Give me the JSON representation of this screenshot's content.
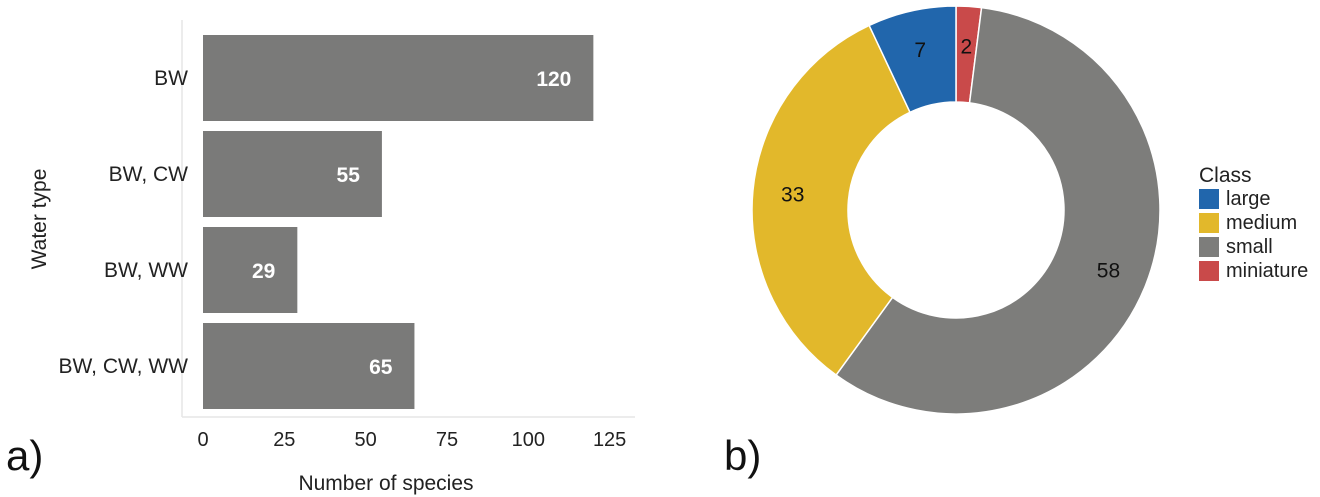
{
  "panel_labels": {
    "a": "a)",
    "b": "b)"
  },
  "chart_data": [
    {
      "type": "bar",
      "orientation": "horizontal",
      "categories": [
        "BW",
        "BW, CW",
        "BW, WW",
        "BW, CW, WW"
      ],
      "values": [
        120,
        55,
        29,
        65
      ],
      "data_labels": [
        "120",
        "55",
        "29",
        "65"
      ],
      "xlabel": "Number of species",
      "ylabel": "Water type",
      "xlim": [
        0,
        125
      ],
      "xticks": [
        0,
        25,
        50,
        75,
        100,
        125
      ],
      "xtick_labels": [
        "0",
        "25",
        "50",
        "75",
        "100",
        "125"
      ],
      "bar_color": "#7a7a79",
      "grid": false
    },
    {
      "type": "pie",
      "style": "donut",
      "labels": [
        "large",
        "medium",
        "small",
        "miniature"
      ],
      "values": [
        7,
        33,
        58,
        2
      ],
      "data_labels": [
        "7",
        "33",
        "58",
        "2"
      ],
      "colors": [
        "#2166ac",
        "#e2b82b",
        "#7d7d7b",
        "#c94a4a"
      ],
      "legend_title": "Class",
      "legend_position": "right"
    }
  ]
}
